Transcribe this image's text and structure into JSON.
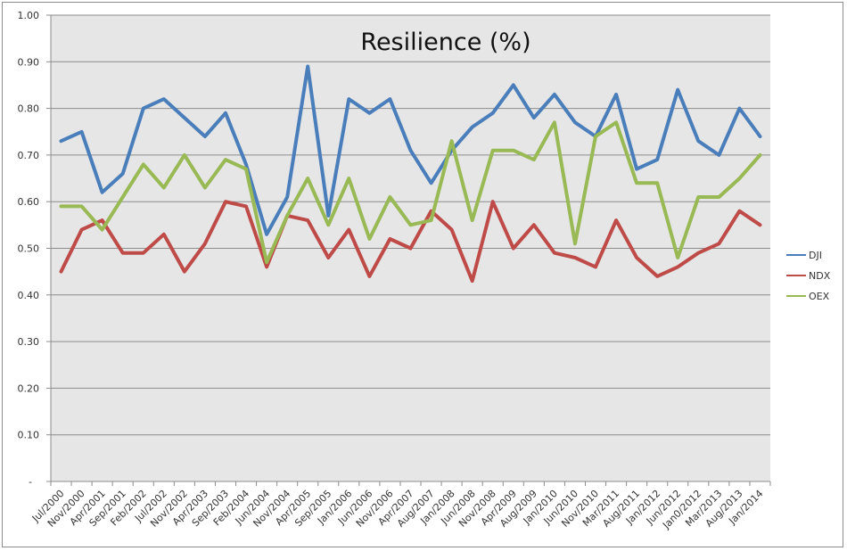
{
  "chart_data": {
    "type": "line",
    "title": "Resilience (%)",
    "xlabel": "",
    "ylabel": "",
    "ylim": [
      0,
      1.0
    ],
    "yticks": [
      "-",
      "0.10",
      "0.20",
      "0.30",
      "0.40",
      "0.50",
      "0.60",
      "0.70",
      "0.80",
      "0.90",
      "1.00"
    ],
    "grid": true,
    "legend_position": "right",
    "categories": [
      "Jul/2000",
      "Nov/2000",
      "Apr/2001",
      "Sep/2001",
      "Feb/2002",
      "Jul/2002",
      "Nov/2002",
      "Apr/2003",
      "Sep/2003",
      "Feb/2004",
      "Jun/2004",
      "Nov/2004",
      "Apr/2005",
      "Sep/2005",
      "Jan/2006",
      "Jun/2006",
      "Nov/2006",
      "Apr/2007",
      "Aug/2007",
      "Jan/2008",
      "Jun/2008",
      "Nov/2008",
      "Apr/2009",
      "Aug/2009",
      "Jan/2010",
      "Jun/2010",
      "Nov/2010",
      "Mar/2011",
      "Aug/2011",
      "Jan/2012",
      "Jun/2012",
      "Jan0/2012",
      "Mar/2013",
      "Aug/2013",
      "Jan/2014"
    ],
    "series": [
      {
        "name": "DJI",
        "color": "#4a7ebb",
        "values": [
          0.73,
          0.75,
          0.62,
          0.66,
          0.8,
          0.82,
          0.78,
          0.74,
          0.79,
          0.68,
          0.53,
          0.61,
          0.89,
          0.57,
          0.82,
          0.79,
          0.82,
          0.71,
          0.64,
          0.71,
          0.76,
          0.79,
          0.85,
          0.78,
          0.83,
          0.77,
          0.74,
          0.83,
          0.67,
          0.69,
          0.84,
          0.73,
          0.7,
          0.8,
          0.74
        ]
      },
      {
        "name": "NDX",
        "color": "#be4b48",
        "values": [
          0.45,
          0.54,
          0.56,
          0.49,
          0.49,
          0.53,
          0.45,
          0.51,
          0.6,
          0.59,
          0.46,
          0.57,
          0.56,
          0.48,
          0.54,
          0.44,
          0.52,
          0.5,
          0.58,
          0.54,
          0.43,
          0.6,
          0.5,
          0.55,
          0.49,
          0.48,
          0.46,
          0.56,
          0.48,
          0.44,
          0.46,
          0.49,
          0.51,
          0.58,
          0.55
        ]
      },
      {
        "name": "OEX",
        "color": "#98b954",
        "values": [
          0.59,
          0.59,
          0.54,
          0.61,
          0.68,
          0.63,
          0.7,
          0.63,
          0.69,
          0.67,
          0.47,
          0.57,
          0.65,
          0.55,
          0.65,
          0.52,
          0.61,
          0.55,
          0.56,
          0.73,
          0.56,
          0.71,
          0.71,
          0.69,
          0.77,
          0.51,
          0.74,
          0.77,
          0.64,
          0.64,
          0.48,
          0.61,
          0.61,
          0.65,
          0.7
        ]
      }
    ]
  },
  "colors": {
    "plot_background": "#e6e6e6",
    "gridline": "#8c8c8c",
    "frame": "#8c8c8c"
  }
}
